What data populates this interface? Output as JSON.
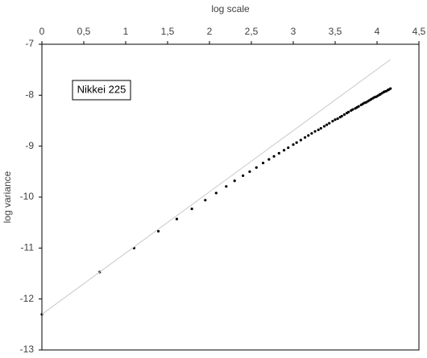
{
  "chart_data": {
    "type": "scatter",
    "x_label": "log scale",
    "y_label": "log variance",
    "xlim": [
      0,
      4.5
    ],
    "xticks": [
      0,
      {
        "value": 0.5,
        "label": "0,5"
      },
      1,
      {
        "value": 1.5,
        "label": "1,5"
      },
      2,
      {
        "value": 2.5,
        "label": "2,5"
      },
      3,
      {
        "value": 3.5,
        "label": "3,5"
      },
      4,
      {
        "value": 4.5,
        "label": "4,5"
      }
    ],
    "ylim": [
      -13,
      -7
    ],
    "yticks": [
      -13,
      -12,
      -11,
      -10,
      -9,
      -8,
      -7
    ],
    "legend": "top-left",
    "series": [
      {
        "name": "Nikkei 225",
        "color": "#000000",
        "x": [
          0,
          0.69,
          1.1,
          1.39,
          1.61,
          1.79,
          1.95,
          2.08,
          2.2,
          2.3,
          2.4,
          2.48,
          2.56,
          2.64,
          2.71,
          2.77,
          2.83,
          2.89,
          2.94,
          3.0,
          3.04,
          3.09,
          3.14,
          3.18,
          3.22,
          3.26,
          3.3,
          3.33,
          3.37,
          3.4,
          3.43,
          3.47,
          3.5,
          3.53,
          3.56,
          3.58,
          3.61,
          3.64,
          3.66,
          3.69,
          3.71,
          3.74,
          3.76,
          3.78,
          3.81,
          3.83,
          3.85,
          3.87,
          3.89,
          3.91,
          3.93,
          3.95,
          3.97,
          3.99,
          4.01,
          4.03,
          4.04,
          4.06,
          4.08,
          4.09,
          4.11,
          4.13,
          4.14,
          4.16
        ],
        "values": [
          -12.3,
          -11.47,
          -11.0,
          -10.67,
          -10.43,
          -10.23,
          -10.06,
          -9.92,
          -9.79,
          -9.68,
          -9.58,
          -9.5,
          -9.42,
          -9.33,
          -9.26,
          -9.2,
          -9.14,
          -9.08,
          -9.03,
          -8.97,
          -8.93,
          -8.88,
          -8.83,
          -8.79,
          -8.75,
          -8.71,
          -8.68,
          -8.65,
          -8.61,
          -8.58,
          -8.55,
          -8.51,
          -8.48,
          -8.46,
          -8.43,
          -8.41,
          -8.38,
          -8.35,
          -8.33,
          -8.3,
          -8.28,
          -8.26,
          -8.24,
          -8.22,
          -8.19,
          -8.17,
          -8.15,
          -8.14,
          -8.12,
          -8.1,
          -8.08,
          -8.06,
          -8.04,
          -8.03,
          -8.01,
          -7.99,
          -7.98,
          -7.96,
          -7.94,
          -7.93,
          -7.92,
          -7.9,
          -7.89,
          -7.87
        ]
      },
      {
        "kind": "line",
        "color": "#c8c8c8",
        "x": [
          0,
          4.16
        ],
        "values": [
          -12.3,
          -7.3
        ]
      }
    ]
  }
}
